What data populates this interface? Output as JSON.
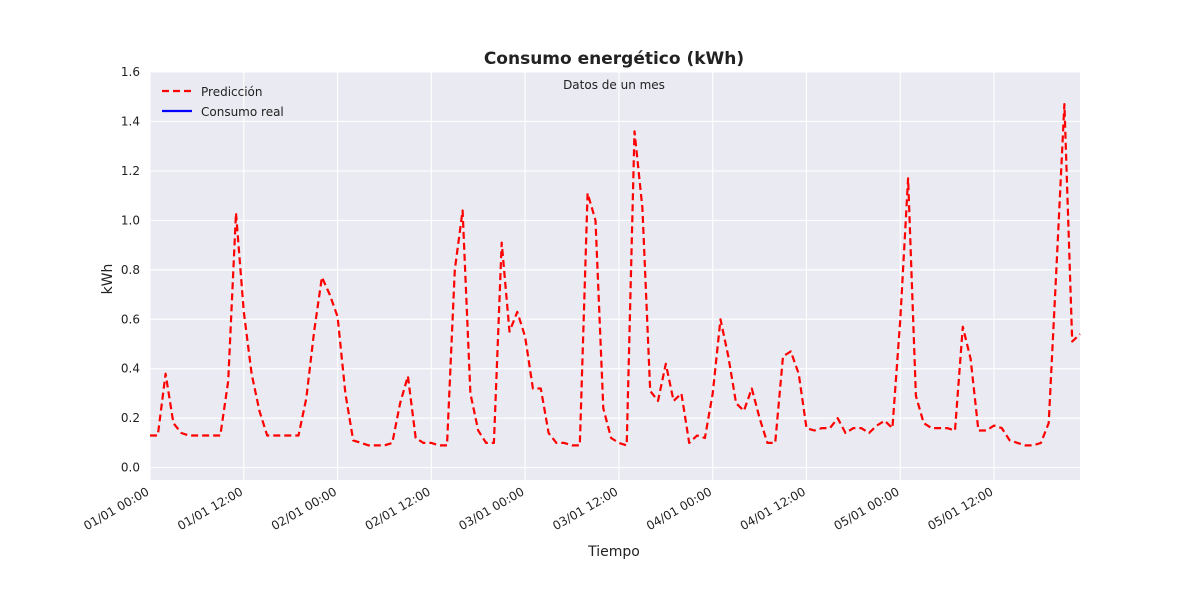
{
  "chart_data": {
    "type": "line",
    "title": "Consumo energético (kWh)",
    "subtitle": "Datos de un mes",
    "xlabel": "Tiempo",
    "ylabel": "kWh",
    "ylim": [
      -0.05,
      1.6
    ],
    "xlim": [
      "01/01 00:00",
      "05/01 23:00"
    ],
    "x_step_hours": 1,
    "start": "01/01 00:00",
    "yticks": [
      0.0,
      0.2,
      0.4,
      0.6,
      0.8,
      1.0,
      1.2,
      1.4,
      1.6
    ],
    "xtick_labels": [
      "01/01 00:00",
      "01/01 12:00",
      "02/01 00:00",
      "02/01 12:00",
      "03/01 00:00",
      "03/01 12:00",
      "04/01 00:00",
      "04/01 12:00",
      "05/01 00:00",
      "05/01 12:00"
    ],
    "grid": true,
    "legend_position": "top-left",
    "colors": {
      "background": "#eaeaf2",
      "grid": "#ffffff",
      "prediccion": "#ff0000",
      "real": "#0000ff"
    },
    "series": [
      {
        "name": "Predicción",
        "style": "dashed",
        "color": "#ff0000",
        "values": [
          0.13,
          0.13,
          0.38,
          0.18,
          0.14,
          0.13,
          0.13,
          0.13,
          0.13,
          0.13,
          0.35,
          1.03,
          0.63,
          0.38,
          0.23,
          0.13,
          0.13,
          0.13,
          0.13,
          0.13,
          0.28,
          0.55,
          0.77,
          0.7,
          0.61,
          0.3,
          0.11,
          0.1,
          0.09,
          0.09,
          0.09,
          0.1,
          0.26,
          0.37,
          0.12,
          0.1,
          0.1,
          0.09,
          0.09,
          0.8,
          1.04,
          0.3,
          0.15,
          0.1,
          0.1,
          0.91,
          0.55,
          0.63,
          0.53,
          0.32,
          0.32,
          0.14,
          0.1,
          0.1,
          0.09,
          0.09,
          1.11,
          1.0,
          0.24,
          0.12,
          0.1,
          0.09,
          1.36,
          1.05,
          0.31,
          0.27,
          0.42,
          0.27,
          0.3,
          0.1,
          0.13,
          0.12,
          0.3,
          0.6,
          0.45,
          0.26,
          0.23,
          0.32,
          0.2,
          0.1,
          0.1,
          0.45,
          0.47,
          0.38,
          0.16,
          0.15,
          0.16,
          0.16,
          0.2,
          0.14,
          0.16,
          0.16,
          0.14,
          0.17,
          0.19,
          0.16,
          0.6,
          1.17,
          0.29,
          0.18,
          0.16,
          0.16,
          0.16,
          0.15,
          0.57,
          0.44,
          0.15,
          0.15,
          0.17,
          0.16,
          0.11,
          0.1,
          0.09,
          0.09,
          0.1,
          0.18,
          0.82,
          1.47,
          0.51,
          0.54
        ]
      },
      {
        "name": "Consumo real",
        "style": "solid",
        "color": "#0000ff",
        "values": []
      }
    ]
  }
}
